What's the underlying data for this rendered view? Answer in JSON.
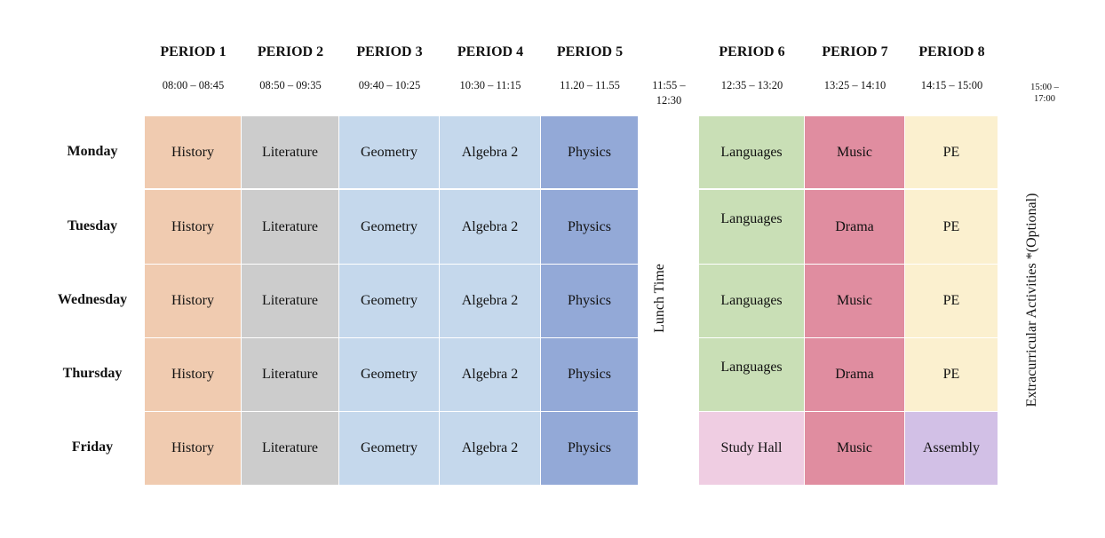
{
  "periods": [
    {
      "label": "PERIOD 1",
      "time": "08:00 – 08:45"
    },
    {
      "label": "PERIOD 2",
      "time": "08:50 – 09:35"
    },
    {
      "label": "PERIOD 3",
      "time": "09:40 – 10:25"
    },
    {
      "label": "PERIOD 4",
      "time": "10:30 – 11:15"
    },
    {
      "label": "PERIOD 5",
      "time": "11.20 – 11.55"
    },
    {
      "label": "PERIOD 6",
      "time": "12:35 – 13:20"
    },
    {
      "label": "PERIOD 7",
      "time": "13:25 – 14:10"
    },
    {
      "label": "PERIOD 8",
      "time": "14:15 – 15:00"
    }
  ],
  "lunch": {
    "time_line1": "11:55 –",
    "time_line2": "12:30",
    "label": "Lunch Time"
  },
  "extracurricular": {
    "time_line1": "15:00 –",
    "time_line2": "17:00",
    "label": "Extracurricular Activities *(Optional)"
  },
  "days": [
    "Monday",
    "Tuesday",
    "Wednesday",
    "Thursday",
    "Friday"
  ],
  "schedule": [
    [
      "History",
      "Literature",
      "Geometry",
      "Algebra 2",
      "Physics",
      "Languages",
      "Music",
      "PE"
    ],
    [
      "History",
      "Literature",
      "Geometry",
      "Algebra 2",
      "Physics",
      "Languages",
      "Drama",
      "PE"
    ],
    [
      "History",
      "Literature",
      "Geometry",
      "Algebra 2",
      "Physics",
      "Languages",
      "Music",
      "PE"
    ],
    [
      "History",
      "Literature",
      "Geometry",
      "Algebra 2",
      "Physics",
      "Languages",
      "Drama",
      "PE"
    ],
    [
      "History",
      "Literature",
      "Geometry",
      "Algebra 2",
      "Physics",
      "Study Hall",
      "Music",
      "Assembly"
    ]
  ],
  "colors": {
    "History": "#f0cbb0",
    "Literature": "#cccccc",
    "Geometry": "#c5d8ec",
    "Algebra 2": "#c5d8ec",
    "Physics": "#93a9d7",
    "Languages": "#c9dfb6",
    "Music": "#e08da0",
    "Drama": "#e08da0",
    "PE": "#fbf0cf",
    "Study Hall": "#efcde2",
    "Assembly": "#d2c0e6"
  }
}
